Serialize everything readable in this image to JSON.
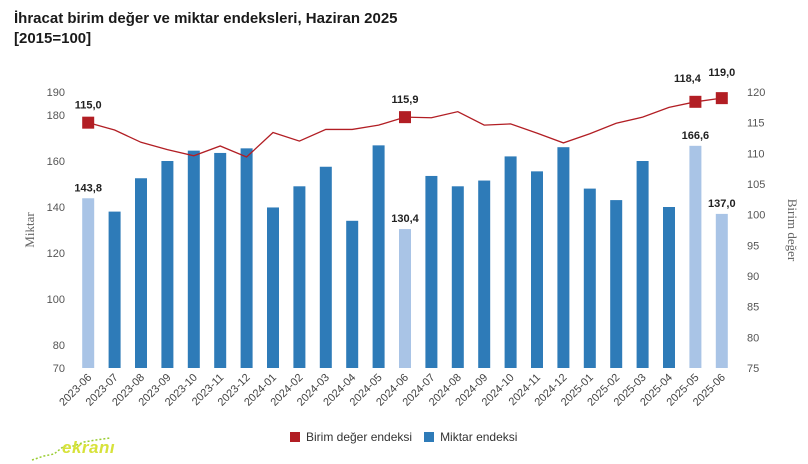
{
  "title": {
    "line1": "İhracat birim değer ve miktar endeksleri, Haziran 2025",
    "line2": "[2015=100]"
  },
  "legend": {
    "unit_value": "Birim değer endeksi",
    "quantity": "Miktar endeksi"
  },
  "colors": {
    "bar_dark": "#2e7bb8",
    "bar_light": "#a9c4e6",
    "line": "#b21e24",
    "marker": "#b21e24"
  },
  "logo_text": "ekranı",
  "chart_data": {
    "type": "bar",
    "categories": [
      "2023-06",
      "2023-07",
      "2023-08",
      "2023-09",
      "2023-10",
      "2023-11",
      "2023-12",
      "2024-01",
      "2024-02",
      "2024-03",
      "2024-04",
      "2024-05",
      "2024-06",
      "2024-07",
      "2024-08",
      "2024-09",
      "2024-10",
      "2024-11",
      "2024-12",
      "2025-01",
      "2025-02",
      "2025-03",
      "2025-04",
      "2025-05",
      "2025-06"
    ],
    "series": [
      {
        "name": "Miktar endeksi",
        "axis": "left",
        "type": "bar",
        "values": [
          143.8,
          138.0,
          152.5,
          160.0,
          164.5,
          163.5,
          165.5,
          139.8,
          149.0,
          157.5,
          134.0,
          166.8,
          130.4,
          153.5,
          149.0,
          151.5,
          162.0,
          155.5,
          166.0,
          148.0,
          143.0,
          160.0,
          140.0,
          166.6,
          137.0
        ],
        "highlight": [
          0,
          12,
          23,
          24
        ]
      },
      {
        "name": "Birim değer endeksi",
        "axis": "right",
        "type": "line",
        "values": [
          115.0,
          113.8,
          111.8,
          110.6,
          109.6,
          111.2,
          109.4,
          113.4,
          112.0,
          113.9,
          113.9,
          114.6,
          115.9,
          115.8,
          116.8,
          114.6,
          114.8,
          113.3,
          111.7,
          113.2,
          114.9,
          115.9,
          117.5,
          118.4,
          119.0
        ],
        "markers": [
          0,
          12,
          23,
          24
        ]
      }
    ],
    "bar_labels": [
      {
        "index": 0,
        "text": "143,8"
      },
      {
        "index": 12,
        "text": "130,4"
      },
      {
        "index": 23,
        "text": "166,6"
      },
      {
        "index": 24,
        "text": "137,0"
      }
    ],
    "line_labels": [
      {
        "index": 0,
        "text": "115,0"
      },
      {
        "index": 12,
        "text": "115,9"
      },
      {
        "index": 23,
        "text": "118,4"
      },
      {
        "index": 24,
        "text": "119,0"
      }
    ],
    "ylabel": "Miktar",
    "y2label": "Birim değer",
    "ylim": [
      70,
      190
    ],
    "y2lim": [
      75,
      120
    ],
    "yticks": [
      "70",
      "80",
      "100",
      "120",
      "140",
      "160",
      "180",
      "190"
    ],
    "y2ticks": [
      "75",
      "80",
      "85",
      "90",
      "95",
      "100",
      "105",
      "110",
      "115",
      "120"
    ],
    "legend_position": "bottom",
    "grid": false
  }
}
